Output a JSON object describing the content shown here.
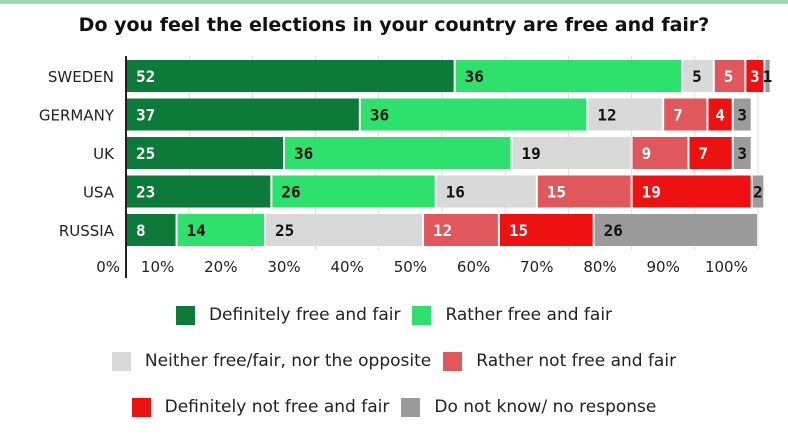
{
  "chart_data": {
    "type": "bar",
    "orientation": "horizontal",
    "stacked": true,
    "title": "Do you feel the elections in your country are free and fair?",
    "categories": [
      "SWEDEN",
      "GERMANY",
      "UK",
      "USA",
      "RUSSIA"
    ],
    "series": [
      {
        "name": "Definitely free and fair",
        "color": "#0c7a39",
        "label_color": "#ffffff",
        "values": [
          52,
          37,
          25,
          23,
          8
        ]
      },
      {
        "name": "Rather free and fair",
        "color": "#2ee06c",
        "label_color": "#111111",
        "values": [
          36,
          36,
          36,
          26,
          14
        ]
      },
      {
        "name": "Neither free/fair, nor the opposite",
        "color": "#d9d9d9",
        "label_color": "#111111",
        "values": [
          5,
          12,
          19,
          16,
          25
        ]
      },
      {
        "name": "Rather not free and fair",
        "color": "#e0575c",
        "label_color": "#ffffff",
        "values": [
          5,
          7,
          9,
          15,
          12
        ]
      },
      {
        "name": "Definitely not free and fair",
        "color": "#ee1111",
        "label_color": "#ffffff",
        "values": [
          3,
          4,
          7,
          19,
          15
        ]
      },
      {
        "name": "Do not know/ no response",
        "color": "#9b9b9b",
        "label_color": "#111111",
        "values": [
          1,
          3,
          3,
          2,
          26
        ]
      }
    ],
    "xticks": [
      "0%",
      "10%",
      "20%",
      "30%",
      "40%",
      "50%",
      "60%",
      "70%",
      "80%",
      "90%",
      "100%"
    ],
    "xlim": [
      0,
      100
    ],
    "grid": "vertical",
    "legend_position": "bottom"
  }
}
